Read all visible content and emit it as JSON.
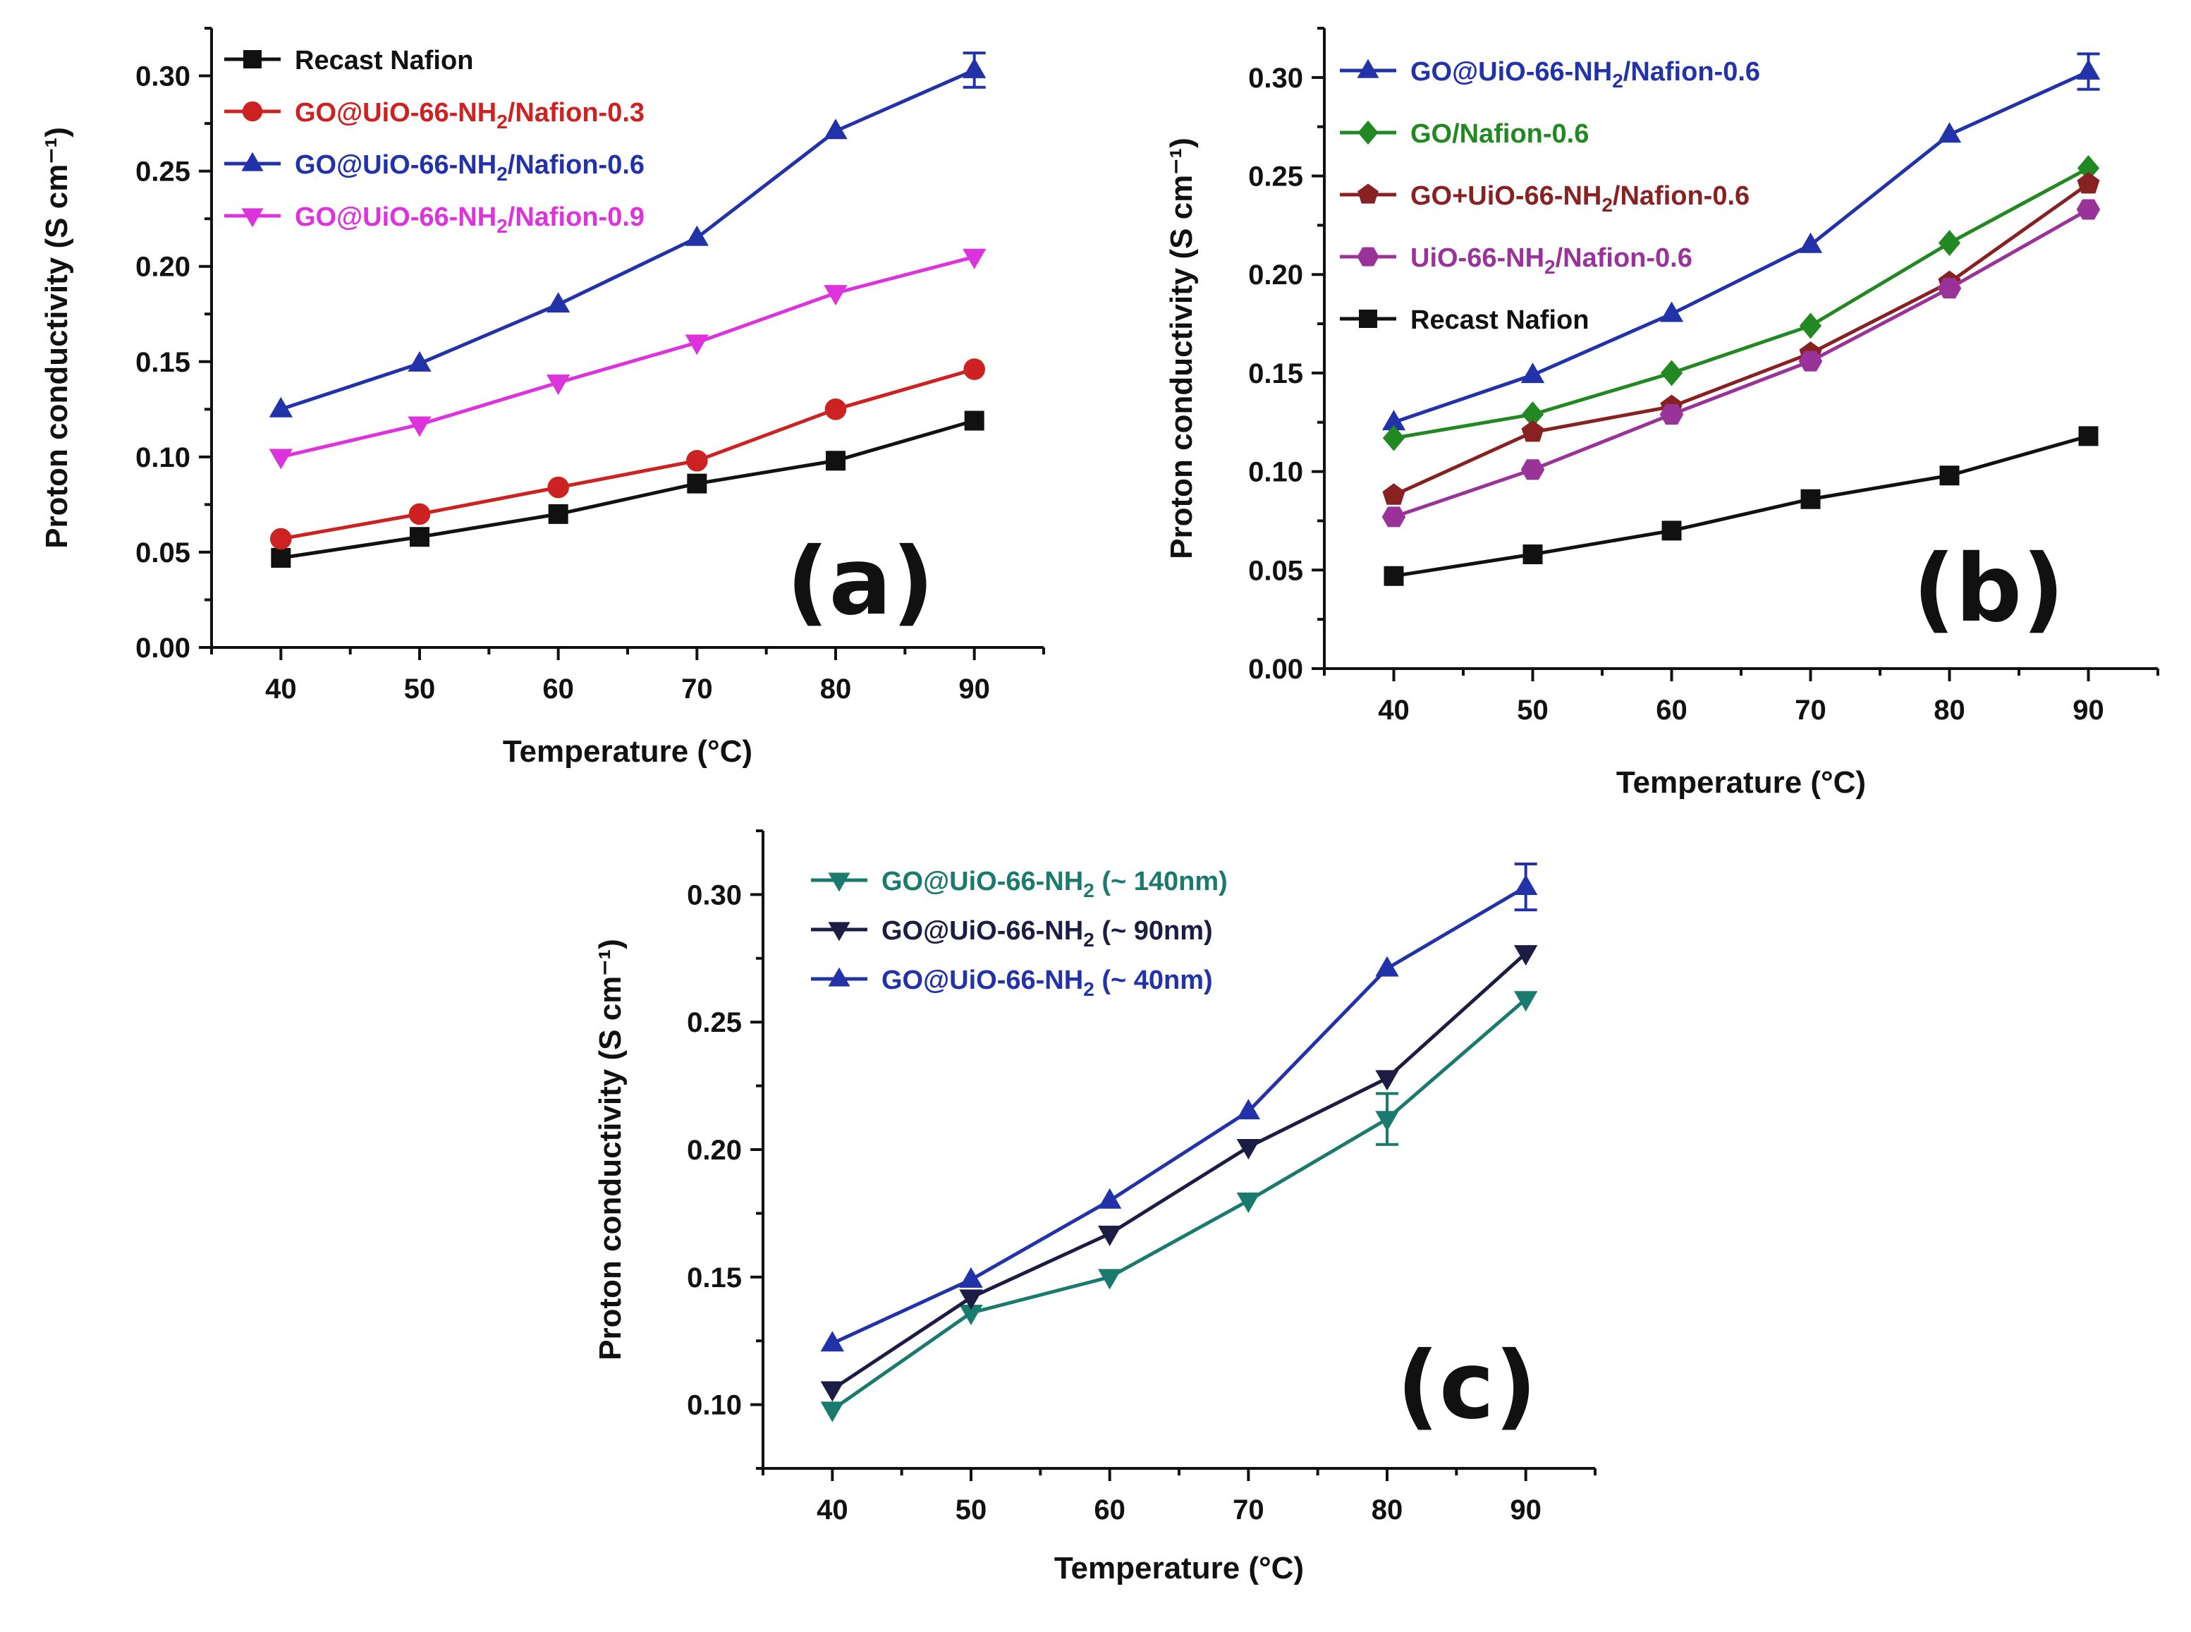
{
  "chart_data": [
    {
      "type": "line",
      "panel_label": "(a)",
      "xlabel": "Temperature (°C)",
      "ylabel": "Proton conductivity (S cm⁻¹)",
      "categories": [
        40,
        50,
        60,
        70,
        80,
        90
      ],
      "x_tick_labels": [
        "40",
        "50",
        "60",
        "70",
        "80",
        "90"
      ],
      "y_tick_labels": [
        "0.00",
        "0.05",
        "0.10",
        "0.15",
        "0.20",
        "0.25",
        "0.30"
      ],
      "xlim": [
        35,
        95
      ],
      "ylim": [
        0.0,
        0.325
      ],
      "yticks": [
        0.0,
        0.05,
        0.1,
        0.15,
        0.2,
        0.25,
        0.3
      ],
      "grid": false,
      "legend_position": "top-left",
      "series": [
        {
          "name": "Recast Nafion",
          "label_main": "Recast Nafion",
          "label_sub": "",
          "label_tail": "",
          "color": "#111111",
          "marker": "square",
          "values": [
            0.047,
            0.058,
            0.07,
            0.086,
            0.098,
            0.119
          ]
        },
        {
          "name": "GO@UiO-66-NH2/Nafion-0.3",
          "label_main": "GO@UiO-66-NH",
          "label_sub": "2",
          "label_tail": "/Nafion-0.3",
          "color": "#cc2222",
          "marker": "circle",
          "values": [
            0.057,
            0.07,
            0.084,
            0.098,
            0.125,
            0.146
          ]
        },
        {
          "name": "GO@UiO-66-NH2/Nafion-0.6",
          "label_main": "GO@UiO-66-NH",
          "label_sub": "2",
          "label_tail": "/Nafion-0.6",
          "color": "#2233aa",
          "marker": "triangle-up",
          "values": [
            0.125,
            0.149,
            0.18,
            0.215,
            0.271,
            0.303
          ],
          "error_index": 5,
          "error": 0.009
        },
        {
          "name": "GO@UiO-66-NH2/Nafion-0.9",
          "label_main": "GO@UiO-66-NH",
          "label_sub": "2",
          "label_tail": "/Nafion-0.9",
          "color": "#dd33dd",
          "marker": "triangle-down",
          "values": [
            0.1,
            0.117,
            0.139,
            0.16,
            0.186,
            0.205
          ]
        }
      ]
    },
    {
      "type": "line",
      "panel_label": "(b)",
      "xlabel": "Temperature (°C)",
      "ylabel": "Proton conductivity (S cm⁻¹)",
      "categories": [
        40,
        50,
        60,
        70,
        80,
        90
      ],
      "x_tick_labels": [
        "40",
        "50",
        "60",
        "70",
        "80",
        "90"
      ],
      "y_tick_labels": [
        "0.00",
        "0.05",
        "0.10",
        "0.15",
        "0.20",
        "0.25",
        "0.30"
      ],
      "xlim": [
        35,
        95
      ],
      "ylim": [
        0.0,
        0.325
      ],
      "yticks": [
        0.0,
        0.05,
        0.1,
        0.15,
        0.2,
        0.25,
        0.3
      ],
      "grid": false,
      "legend_position": "top-left",
      "series": [
        {
          "name": "GO@UiO-66-NH2/Nafion-0.6",
          "label_main": "GO@UiO-66-NH",
          "label_sub": "2",
          "label_tail": "/Nafion-0.6",
          "color": "#2233aa",
          "marker": "triangle-up",
          "values": [
            0.125,
            0.149,
            0.18,
            0.215,
            0.271,
            0.303
          ],
          "error_index": 5,
          "error": 0.009
        },
        {
          "name": "GO/Nafion-0.6",
          "label_main": "GO/Nafion-0.6",
          "label_sub": "",
          "label_tail": "",
          "color": "#228822",
          "marker": "diamond",
          "values": [
            0.117,
            0.129,
            0.15,
            0.174,
            0.216,
            0.254
          ]
        },
        {
          "name": "GO+UiO-66-NH2/Nafion-0.6",
          "label_main": "GO+UiO-66-NH",
          "label_sub": "2",
          "label_tail": "/Nafion-0.6",
          "color": "#882222",
          "marker": "pentagon",
          "values": [
            0.088,
            0.12,
            0.133,
            0.16,
            0.196,
            0.246
          ]
        },
        {
          "name": "UiO-66-NH2/Nafion-0.6",
          "label_main": "UiO-66-NH",
          "label_sub": "2",
          "label_tail": "/Nafion-0.6",
          "color": "#993399",
          "marker": "hexagon",
          "values": [
            0.077,
            0.101,
            0.129,
            0.156,
            0.193,
            0.233
          ]
        },
        {
          "name": "Recast Nafion",
          "label_main": "Recast Nafion",
          "label_sub": "",
          "label_tail": "",
          "color": "#111111",
          "marker": "square",
          "values": [
            0.047,
            0.058,
            0.07,
            0.086,
            0.098,
            0.118
          ]
        }
      ]
    },
    {
      "type": "line",
      "panel_label": "(c)",
      "xlabel": "Temperature (°C)",
      "ylabel": "Proton conductivity (S cm⁻¹)",
      "categories": [
        40,
        50,
        60,
        70,
        80,
        90
      ],
      "x_tick_labels": [
        "40",
        "50",
        "60",
        "70",
        "80",
        "90"
      ],
      "y_tick_labels": [
        "0.10",
        "0.15",
        "0.20",
        "0.25",
        "0.30"
      ],
      "xlim": [
        35,
        95
      ],
      "ylim": [
        0.075,
        0.325
      ],
      "yticks": [
        0.1,
        0.15,
        0.2,
        0.25,
        0.3
      ],
      "grid": false,
      "legend_position": "top-left",
      "series": [
        {
          "name": "GO@UiO-66-NH2 (~ 140nm)",
          "label_main": "GO@UiO-66-NH",
          "label_sub": "2",
          "label_tail": " (~ 140nm)",
          "color": "#1a7a6e",
          "marker": "triangle-down",
          "values": [
            0.098,
            0.136,
            0.15,
            0.18,
            0.212,
            0.259
          ],
          "error_index": 4,
          "error": 0.01
        },
        {
          "name": "GO@UiO-66-NH2 (~ 90nm)",
          "label_main": "GO@UiO-66-NH",
          "label_sub": "2",
          "label_tail": " (~ 90nm)",
          "color": "#1c1c44",
          "marker": "triangle-down",
          "values": [
            0.106,
            0.142,
            0.167,
            0.201,
            0.228,
            0.277
          ]
        },
        {
          "name": "GO@UiO-66-NH2 (~ 40nm)",
          "label_main": "GO@UiO-66-NH",
          "label_sub": "2",
          "label_tail": " (~ 40nm)",
          "color": "#2233aa",
          "marker": "triangle-up",
          "values": [
            0.124,
            0.149,
            0.18,
            0.215,
            0.271,
            0.303
          ],
          "error_index": 5,
          "error": 0.009
        }
      ]
    }
  ]
}
